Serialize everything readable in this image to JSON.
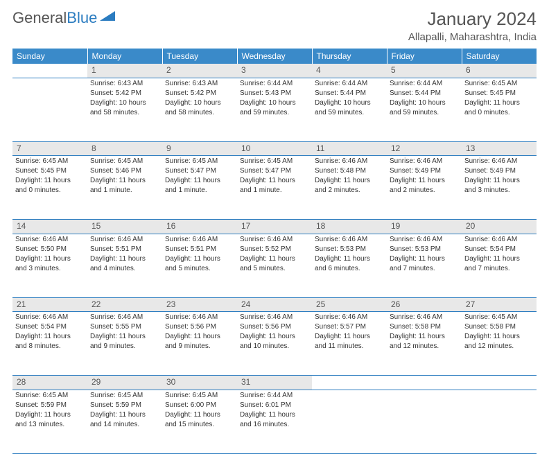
{
  "logo": {
    "text1": "General",
    "text2": "Blue"
  },
  "month_title": "January 2024",
  "location": "Allapalli, Maharashtra, India",
  "weekdays": [
    "Sunday",
    "Monday",
    "Tuesday",
    "Wednesday",
    "Thursday",
    "Friday",
    "Saturday"
  ],
  "colors": {
    "header_bg": "#3a8ac9",
    "row_border": "#2b7cc0",
    "daynum_bg": "#e8e8e8",
    "text": "#333333",
    "logo_blue": "#2b7cc0"
  },
  "weeks": [
    {
      "days": [
        null,
        {
          "n": "1",
          "sr": "Sunrise: 6:43 AM",
          "ss": "Sunset: 5:42 PM",
          "d1": "Daylight: 10 hours",
          "d2": "and 58 minutes."
        },
        {
          "n": "2",
          "sr": "Sunrise: 6:43 AM",
          "ss": "Sunset: 5:42 PM",
          "d1": "Daylight: 10 hours",
          "d2": "and 58 minutes."
        },
        {
          "n": "3",
          "sr": "Sunrise: 6:44 AM",
          "ss": "Sunset: 5:43 PM",
          "d1": "Daylight: 10 hours",
          "d2": "and 59 minutes."
        },
        {
          "n": "4",
          "sr": "Sunrise: 6:44 AM",
          "ss": "Sunset: 5:44 PM",
          "d1": "Daylight: 10 hours",
          "d2": "and 59 minutes."
        },
        {
          "n": "5",
          "sr": "Sunrise: 6:44 AM",
          "ss": "Sunset: 5:44 PM",
          "d1": "Daylight: 10 hours",
          "d2": "and 59 minutes."
        },
        {
          "n": "6",
          "sr": "Sunrise: 6:45 AM",
          "ss": "Sunset: 5:45 PM",
          "d1": "Daylight: 11 hours",
          "d2": "and 0 minutes."
        }
      ]
    },
    {
      "days": [
        {
          "n": "7",
          "sr": "Sunrise: 6:45 AM",
          "ss": "Sunset: 5:45 PM",
          "d1": "Daylight: 11 hours",
          "d2": "and 0 minutes."
        },
        {
          "n": "8",
          "sr": "Sunrise: 6:45 AM",
          "ss": "Sunset: 5:46 PM",
          "d1": "Daylight: 11 hours",
          "d2": "and 1 minute."
        },
        {
          "n": "9",
          "sr": "Sunrise: 6:45 AM",
          "ss": "Sunset: 5:47 PM",
          "d1": "Daylight: 11 hours",
          "d2": "and 1 minute."
        },
        {
          "n": "10",
          "sr": "Sunrise: 6:45 AM",
          "ss": "Sunset: 5:47 PM",
          "d1": "Daylight: 11 hours",
          "d2": "and 1 minute."
        },
        {
          "n": "11",
          "sr": "Sunrise: 6:46 AM",
          "ss": "Sunset: 5:48 PM",
          "d1": "Daylight: 11 hours",
          "d2": "and 2 minutes."
        },
        {
          "n": "12",
          "sr": "Sunrise: 6:46 AM",
          "ss": "Sunset: 5:49 PM",
          "d1": "Daylight: 11 hours",
          "d2": "and 2 minutes."
        },
        {
          "n": "13",
          "sr": "Sunrise: 6:46 AM",
          "ss": "Sunset: 5:49 PM",
          "d1": "Daylight: 11 hours",
          "d2": "and 3 minutes."
        }
      ]
    },
    {
      "days": [
        {
          "n": "14",
          "sr": "Sunrise: 6:46 AM",
          "ss": "Sunset: 5:50 PM",
          "d1": "Daylight: 11 hours",
          "d2": "and 3 minutes."
        },
        {
          "n": "15",
          "sr": "Sunrise: 6:46 AM",
          "ss": "Sunset: 5:51 PM",
          "d1": "Daylight: 11 hours",
          "d2": "and 4 minutes."
        },
        {
          "n": "16",
          "sr": "Sunrise: 6:46 AM",
          "ss": "Sunset: 5:51 PM",
          "d1": "Daylight: 11 hours",
          "d2": "and 5 minutes."
        },
        {
          "n": "17",
          "sr": "Sunrise: 6:46 AM",
          "ss": "Sunset: 5:52 PM",
          "d1": "Daylight: 11 hours",
          "d2": "and 5 minutes."
        },
        {
          "n": "18",
          "sr": "Sunrise: 6:46 AM",
          "ss": "Sunset: 5:53 PM",
          "d1": "Daylight: 11 hours",
          "d2": "and 6 minutes."
        },
        {
          "n": "19",
          "sr": "Sunrise: 6:46 AM",
          "ss": "Sunset: 5:53 PM",
          "d1": "Daylight: 11 hours",
          "d2": "and 7 minutes."
        },
        {
          "n": "20",
          "sr": "Sunrise: 6:46 AM",
          "ss": "Sunset: 5:54 PM",
          "d1": "Daylight: 11 hours",
          "d2": "and 7 minutes."
        }
      ]
    },
    {
      "days": [
        {
          "n": "21",
          "sr": "Sunrise: 6:46 AM",
          "ss": "Sunset: 5:54 PM",
          "d1": "Daylight: 11 hours",
          "d2": "and 8 minutes."
        },
        {
          "n": "22",
          "sr": "Sunrise: 6:46 AM",
          "ss": "Sunset: 5:55 PM",
          "d1": "Daylight: 11 hours",
          "d2": "and 9 minutes."
        },
        {
          "n": "23",
          "sr": "Sunrise: 6:46 AM",
          "ss": "Sunset: 5:56 PM",
          "d1": "Daylight: 11 hours",
          "d2": "and 9 minutes."
        },
        {
          "n": "24",
          "sr": "Sunrise: 6:46 AM",
          "ss": "Sunset: 5:56 PM",
          "d1": "Daylight: 11 hours",
          "d2": "and 10 minutes."
        },
        {
          "n": "25",
          "sr": "Sunrise: 6:46 AM",
          "ss": "Sunset: 5:57 PM",
          "d1": "Daylight: 11 hours",
          "d2": "and 11 minutes."
        },
        {
          "n": "26",
          "sr": "Sunrise: 6:46 AM",
          "ss": "Sunset: 5:58 PM",
          "d1": "Daylight: 11 hours",
          "d2": "and 12 minutes."
        },
        {
          "n": "27",
          "sr": "Sunrise: 6:45 AM",
          "ss": "Sunset: 5:58 PM",
          "d1": "Daylight: 11 hours",
          "d2": "and 12 minutes."
        }
      ]
    },
    {
      "days": [
        {
          "n": "28",
          "sr": "Sunrise: 6:45 AM",
          "ss": "Sunset: 5:59 PM",
          "d1": "Daylight: 11 hours",
          "d2": "and 13 minutes."
        },
        {
          "n": "29",
          "sr": "Sunrise: 6:45 AM",
          "ss": "Sunset: 5:59 PM",
          "d1": "Daylight: 11 hours",
          "d2": "and 14 minutes."
        },
        {
          "n": "30",
          "sr": "Sunrise: 6:45 AM",
          "ss": "Sunset: 6:00 PM",
          "d1": "Daylight: 11 hours",
          "d2": "and 15 minutes."
        },
        {
          "n": "31",
          "sr": "Sunrise: 6:44 AM",
          "ss": "Sunset: 6:01 PM",
          "d1": "Daylight: 11 hours",
          "d2": "and 16 minutes."
        },
        null,
        null,
        null
      ]
    }
  ]
}
